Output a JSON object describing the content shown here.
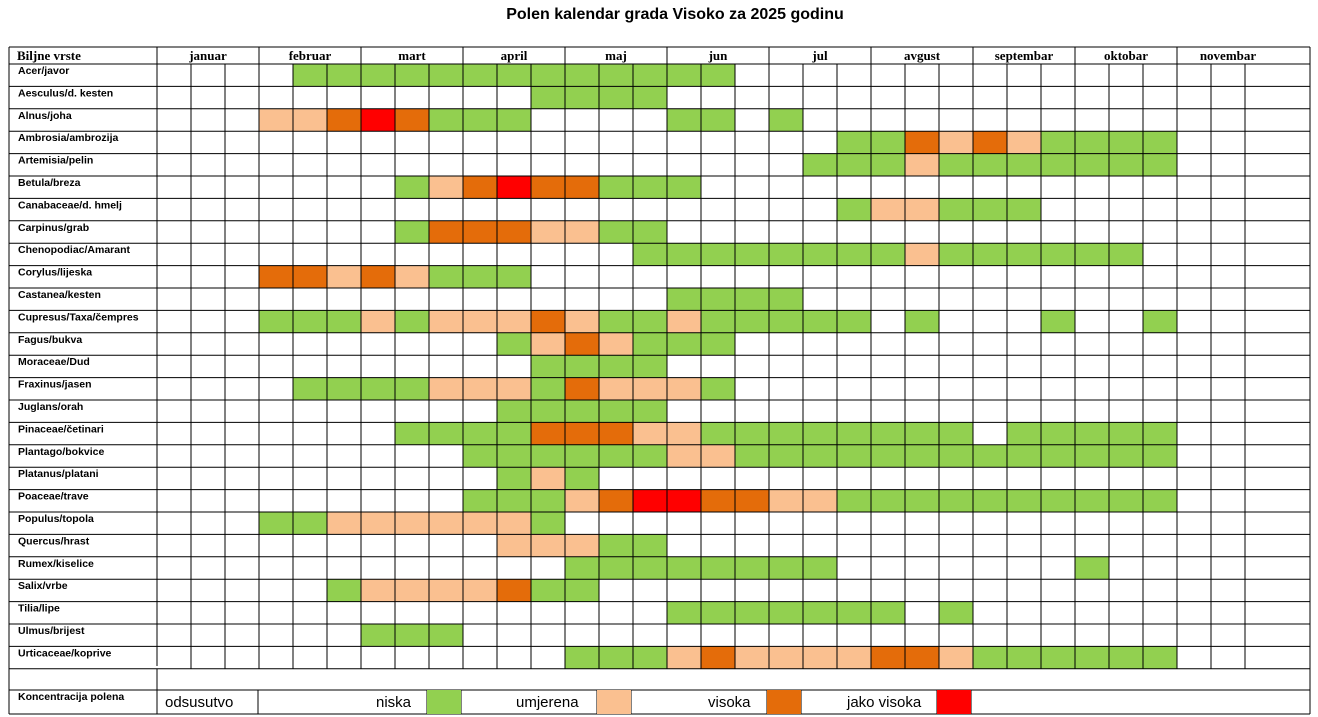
{
  "title": "Polen kalendar grada Visoko za 2025 godinu",
  "colors": {
    "niska": "#92D050",
    "umjerena": "#FAC090",
    "visoka": "#E46C0A",
    "jako_visoka": "#FF0000",
    "grid": "#000000"
  },
  "chart_data": {
    "type": "heatmap",
    "title": "Polen kalendar grada Visoko za 2025 godinu",
    "row_header": "Biljne vrste",
    "months": [
      "januar",
      "februar",
      "mart",
      "april",
      "maj",
      "jun",
      "jul",
      "avgust",
      "septembar",
      "oktobar",
      "novembar"
    ],
    "periods_per_month": 3,
    "level_codes": {
      "0": "odsusutvo",
      "1": "niska",
      "2": "umjerena",
      "3": "visoka",
      "4": "jako visoka"
    },
    "rows": [
      {
        "name": "Acer/javor",
        "levels": [
          0,
          0,
          0,
          0,
          1,
          1,
          1,
          1,
          1,
          1,
          1,
          1,
          1,
          1,
          1,
          1,
          1,
          0,
          0,
          0,
          0,
          0,
          0,
          0,
          0,
          0,
          0,
          0,
          0,
          0,
          0,
          0,
          0
        ]
      },
      {
        "name": "Aesculus/d. kesten",
        "levels": [
          0,
          0,
          0,
          0,
          0,
          0,
          0,
          0,
          0,
          0,
          0,
          1,
          1,
          1,
          1,
          0,
          0,
          0,
          0,
          0,
          0,
          0,
          0,
          0,
          0,
          0,
          0,
          0,
          0,
          0,
          0,
          0,
          0
        ]
      },
      {
        "name": "Alnus/joha",
        "levels": [
          0,
          0,
          0,
          2,
          2,
          3,
          4,
          3,
          1,
          1,
          1,
          0,
          0,
          0,
          0,
          1,
          1,
          0,
          1,
          0,
          0,
          0,
          0,
          0,
          0,
          0,
          0,
          0,
          0,
          0,
          0,
          0,
          0
        ]
      },
      {
        "name": "Ambrosia/ambrozija",
        "levels": [
          0,
          0,
          0,
          0,
          0,
          0,
          0,
          0,
          0,
          0,
          0,
          0,
          0,
          0,
          0,
          0,
          0,
          0,
          0,
          0,
          1,
          1,
          3,
          2,
          3,
          2,
          1,
          1,
          1,
          1,
          0,
          0,
          0
        ]
      },
      {
        "name": "Artemisia/pelin",
        "levels": [
          0,
          0,
          0,
          0,
          0,
          0,
          0,
          0,
          0,
          0,
          0,
          0,
          0,
          0,
          0,
          0,
          0,
          0,
          0,
          1,
          1,
          1,
          2,
          1,
          1,
          1,
          1,
          1,
          1,
          1,
          0,
          0,
          0
        ]
      },
      {
        "name": "Betula/breza",
        "levels": [
          0,
          0,
          0,
          0,
          0,
          0,
          0,
          1,
          2,
          3,
          4,
          3,
          3,
          1,
          1,
          1,
          0,
          0,
          0,
          0,
          0,
          0,
          0,
          0,
          0,
          0,
          0,
          0,
          0,
          0,
          0,
          0,
          0
        ]
      },
      {
        "name": "Canabaceae/d. hmelj",
        "levels": [
          0,
          0,
          0,
          0,
          0,
          0,
          0,
          0,
          0,
          0,
          0,
          0,
          0,
          0,
          0,
          0,
          0,
          0,
          0,
          0,
          1,
          2,
          2,
          1,
          1,
          1,
          0,
          0,
          0,
          0,
          0,
          0,
          0
        ]
      },
      {
        "name": "Carpinus/grab",
        "levels": [
          0,
          0,
          0,
          0,
          0,
          0,
          0,
          1,
          3,
          3,
          3,
          2,
          2,
          1,
          1,
          0,
          0,
          0,
          0,
          0,
          0,
          0,
          0,
          0,
          0,
          0,
          0,
          0,
          0,
          0,
          0,
          0,
          0
        ]
      },
      {
        "name": "Chenopodiac/Amarant",
        "levels": [
          0,
          0,
          0,
          0,
          0,
          0,
          0,
          0,
          0,
          0,
          0,
          0,
          0,
          0,
          1,
          1,
          1,
          1,
          1,
          1,
          1,
          1,
          2,
          1,
          1,
          1,
          1,
          1,
          1,
          0,
          0,
          0,
          0
        ]
      },
      {
        "name": "Corylus/lijeska",
        "levels": [
          0,
          0,
          0,
          3,
          3,
          2,
          3,
          2,
          1,
          1,
          1,
          0,
          0,
          0,
          0,
          0,
          0,
          0,
          0,
          0,
          0,
          0,
          0,
          0,
          0,
          0,
          0,
          0,
          0,
          0,
          0,
          0,
          0
        ]
      },
      {
        "name": "Castanea/kesten",
        "levels": [
          0,
          0,
          0,
          0,
          0,
          0,
          0,
          0,
          0,
          0,
          0,
          0,
          0,
          0,
          0,
          1,
          1,
          1,
          1,
          0,
          0,
          0,
          0,
          0,
          0,
          0,
          0,
          0,
          0,
          0,
          0,
          0,
          0
        ]
      },
      {
        "name": "Cupresus/Taxa/čempres",
        "levels": [
          0,
          0,
          0,
          1,
          1,
          1,
          2,
          1,
          2,
          2,
          2,
          3,
          2,
          1,
          1,
          2,
          1,
          1,
          1,
          1,
          1,
          0,
          1,
          0,
          0,
          0,
          1,
          0,
          0,
          1,
          0,
          0,
          0
        ]
      },
      {
        "name": "Fagus/bukva",
        "levels": [
          0,
          0,
          0,
          0,
          0,
          0,
          0,
          0,
          0,
          0,
          1,
          2,
          3,
          2,
          1,
          1,
          1,
          0,
          0,
          0,
          0,
          0,
          0,
          0,
          0,
          0,
          0,
          0,
          0,
          0,
          0,
          0,
          0
        ]
      },
      {
        "name": "Moraceae/Dud",
        "levels": [
          0,
          0,
          0,
          0,
          0,
          0,
          0,
          0,
          0,
          0,
          0,
          1,
          1,
          1,
          1,
          0,
          0,
          0,
          0,
          0,
          0,
          0,
          0,
          0,
          0,
          0,
          0,
          0,
          0,
          0,
          0,
          0,
          0
        ]
      },
      {
        "name": "Fraxinus/jasen",
        "levels": [
          0,
          0,
          0,
          0,
          1,
          1,
          1,
          1,
          2,
          2,
          2,
          1,
          3,
          2,
          2,
          2,
          1,
          0,
          0,
          0,
          0,
          0,
          0,
          0,
          0,
          0,
          0,
          0,
          0,
          0,
          0,
          0,
          0
        ]
      },
      {
        "name": "Juglans/orah",
        "levels": [
          0,
          0,
          0,
          0,
          0,
          0,
          0,
          0,
          0,
          0,
          1,
          1,
          1,
          1,
          1,
          0,
          0,
          0,
          0,
          0,
          0,
          0,
          0,
          0,
          0,
          0,
          0,
          0,
          0,
          0,
          0,
          0,
          0
        ]
      },
      {
        "name": "Pinaceae/četinari",
        "levels": [
          0,
          0,
          0,
          0,
          0,
          0,
          0,
          1,
          1,
          1,
          1,
          3,
          3,
          3,
          2,
          2,
          1,
          1,
          1,
          1,
          1,
          1,
          1,
          1,
          0,
          1,
          1,
          1,
          1,
          1,
          0,
          0,
          0
        ]
      },
      {
        "name": "Plantago/bokvice",
        "levels": [
          0,
          0,
          0,
          0,
          0,
          0,
          0,
          0,
          0,
          1,
          1,
          1,
          1,
          1,
          1,
          2,
          2,
          1,
          1,
          1,
          1,
          1,
          1,
          1,
          1,
          1,
          1,
          1,
          1,
          1,
          0,
          0,
          0
        ]
      },
      {
        "name": "Platanus/platani",
        "levels": [
          0,
          0,
          0,
          0,
          0,
          0,
          0,
          0,
          0,
          0,
          1,
          2,
          1,
          0,
          0,
          0,
          0,
          0,
          0,
          0,
          0,
          0,
          0,
          0,
          0,
          0,
          0,
          0,
          0,
          0,
          0,
          0,
          0
        ]
      },
      {
        "name": "Poaceae/trave",
        "levels": [
          0,
          0,
          0,
          0,
          0,
          0,
          0,
          0,
          0,
          1,
          1,
          1,
          2,
          3,
          4,
          4,
          3,
          3,
          2,
          2,
          1,
          1,
          1,
          1,
          1,
          1,
          1,
          1,
          1,
          1,
          0,
          0,
          0
        ]
      },
      {
        "name": "Populus/topola",
        "levels": [
          0,
          0,
          0,
          1,
          1,
          2,
          2,
          2,
          2,
          2,
          2,
          1,
          0,
          0,
          0,
          0,
          0,
          0,
          0,
          0,
          0,
          0,
          0,
          0,
          0,
          0,
          0,
          0,
          0,
          0,
          0,
          0,
          0
        ]
      },
      {
        "name": "Quercus/hrast",
        "levels": [
          0,
          0,
          0,
          0,
          0,
          0,
          0,
          0,
          0,
          0,
          2,
          2,
          2,
          1,
          1,
          0,
          0,
          0,
          0,
          0,
          0,
          0,
          0,
          0,
          0,
          0,
          0,
          0,
          0,
          0,
          0,
          0,
          0
        ]
      },
      {
        "name": "Rumex/kiselice",
        "levels": [
          0,
          0,
          0,
          0,
          0,
          0,
          0,
          0,
          0,
          0,
          0,
          0,
          1,
          1,
          1,
          1,
          1,
          1,
          1,
          1,
          0,
          0,
          0,
          0,
          0,
          0,
          0,
          1,
          0,
          0,
          0,
          0,
          0
        ]
      },
      {
        "name": "Salix/vrbe",
        "levels": [
          0,
          0,
          0,
          0,
          0,
          1,
          2,
          2,
          2,
          2,
          3,
          1,
          1,
          0,
          0,
          0,
          0,
          0,
          0,
          0,
          0,
          0,
          0,
          0,
          0,
          0,
          0,
          0,
          0,
          0,
          0,
          0,
          0
        ]
      },
      {
        "name": "Tilia/lipe",
        "levels": [
          0,
          0,
          0,
          0,
          0,
          0,
          0,
          0,
          0,
          0,
          0,
          0,
          0,
          0,
          0,
          1,
          1,
          1,
          1,
          1,
          1,
          1,
          0,
          1,
          0,
          0,
          0,
          0,
          0,
          0,
          0,
          0,
          0
        ]
      },
      {
        "name": "Ulmus/brijest",
        "levels": [
          0,
          0,
          0,
          0,
          0,
          0,
          1,
          1,
          1,
          0,
          0,
          0,
          0,
          0,
          0,
          0,
          0,
          0,
          0,
          0,
          0,
          0,
          0,
          0,
          0,
          0,
          0,
          0,
          0,
          0,
          0,
          0,
          0
        ]
      },
      {
        "name": "Urticaceae/koprive",
        "levels": [
          0,
          0,
          0,
          0,
          0,
          0,
          0,
          0,
          0,
          0,
          0,
          0,
          1,
          1,
          1,
          2,
          3,
          2,
          2,
          2,
          2,
          3,
          3,
          2,
          1,
          1,
          1,
          1,
          1,
          1,
          0,
          0,
          0
        ]
      }
    ],
    "legend": {
      "label": "Koncentracija polena",
      "items": [
        {
          "label": "odsusutvo",
          "level": 0
        },
        {
          "label": "niska",
          "level": 1
        },
        {
          "label": "umjerena",
          "level": 2
        },
        {
          "label": "visoka",
          "level": 3
        },
        {
          "label": "jako visoka",
          "level": 4
        }
      ]
    }
  }
}
